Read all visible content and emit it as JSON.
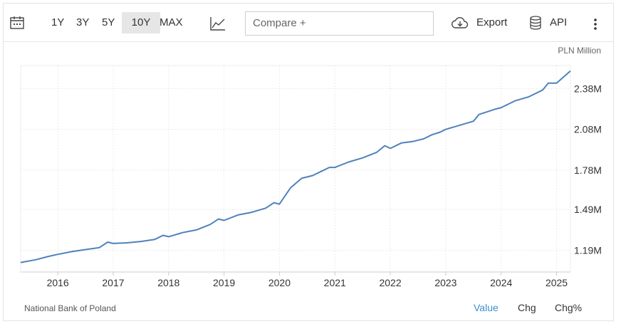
{
  "toolbar": {
    "ranges": [
      "1Y",
      "3Y",
      "5Y",
      "10Y",
      "MAX"
    ],
    "active_range": "10Y",
    "compare_placeholder": "Compare +",
    "export_label": "Export",
    "api_label": "API"
  },
  "chart_data": {
    "type": "line",
    "unit_label": "PLN Million",
    "x_tick_labels": [
      "2016",
      "2017",
      "2018",
      "2019",
      "2020",
      "2021",
      "2022",
      "2023",
      "2024",
      "2025"
    ],
    "y_tick_labels": [
      "1.19M",
      "1.49M",
      "1.78M",
      "2.08M",
      "2.38M"
    ],
    "y_ticks": [
      1190000,
      1490000,
      1780000,
      2080000,
      2380000
    ],
    "ylim": [
      1030000,
      2550000
    ],
    "xlim": [
      2015.33,
      2025.25
    ],
    "grid": true,
    "series": [
      {
        "color": "#4f81bd",
        "x": [
          2015.33,
          2015.6,
          2015.83,
          2016.0,
          2016.25,
          2016.5,
          2016.75,
          2016.9,
          2017.0,
          2017.25,
          2017.5,
          2017.75,
          2017.9,
          2018.0,
          2018.25,
          2018.5,
          2018.75,
          2018.9,
          2019.0,
          2019.25,
          2019.5,
          2019.75,
          2019.9,
          2020.0,
          2020.2,
          2020.4,
          2020.6,
          2020.75,
          2020.9,
          2021.0,
          2021.25,
          2021.5,
          2021.75,
          2021.9,
          2022.0,
          2022.2,
          2022.4,
          2022.6,
          2022.75,
          2022.9,
          2023.0,
          2023.25,
          2023.5,
          2023.6,
          2023.75,
          2023.9,
          2024.0,
          2024.25,
          2024.5,
          2024.75,
          2024.85,
          2025.0,
          2025.25
        ],
        "values": [
          1100000,
          1120000,
          1145000,
          1160000,
          1180000,
          1195000,
          1210000,
          1250000,
          1240000,
          1245000,
          1255000,
          1270000,
          1300000,
          1290000,
          1320000,
          1340000,
          1380000,
          1420000,
          1410000,
          1450000,
          1470000,
          1500000,
          1540000,
          1530000,
          1650000,
          1720000,
          1740000,
          1770000,
          1800000,
          1800000,
          1840000,
          1870000,
          1910000,
          1960000,
          1940000,
          1980000,
          1990000,
          2010000,
          2040000,
          2060000,
          2080000,
          2110000,
          2140000,
          2190000,
          2210000,
          2230000,
          2240000,
          2290000,
          2320000,
          2370000,
          2420000,
          2420000,
          2510000
        ]
      }
    ]
  },
  "footer": {
    "source": "National Bank of Poland",
    "views": [
      "Value",
      "Chg",
      "Chg%"
    ],
    "active_view": "Value"
  }
}
